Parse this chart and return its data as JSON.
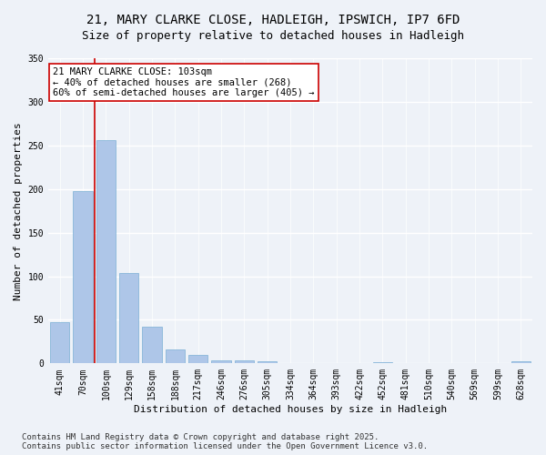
{
  "title_line1": "21, MARY CLARKE CLOSE, HADLEIGH, IPSWICH, IP7 6FD",
  "title_line2": "Size of property relative to detached houses in Hadleigh",
  "xlabel": "Distribution of detached houses by size in Hadleigh",
  "ylabel": "Number of detached properties",
  "categories": [
    "41sqm",
    "70sqm",
    "100sqm",
    "129sqm",
    "158sqm",
    "188sqm",
    "217sqm",
    "246sqm",
    "276sqm",
    "305sqm",
    "334sqm",
    "364sqm",
    "393sqm",
    "422sqm",
    "452sqm",
    "481sqm",
    "510sqm",
    "540sqm",
    "569sqm",
    "599sqm",
    "628sqm"
  ],
  "values": [
    47,
    198,
    256,
    104,
    42,
    16,
    10,
    4,
    4,
    2,
    0,
    0,
    0,
    0,
    1,
    0,
    0,
    0,
    0,
    0,
    2
  ],
  "bar_color": "#aec6e8",
  "bar_edge_color": "#7aafd4",
  "vline_x_index": 2,
  "vline_color": "#cc0000",
  "annotation_text": "21 MARY CLARKE CLOSE: 103sqm\n← 40% of detached houses are smaller (268)\n60% of semi-detached houses are larger (405) →",
  "annotation_box_color": "#ffffff",
  "annotation_box_edge_color": "#cc0000",
  "ylim": [
    0,
    350
  ],
  "yticks": [
    0,
    50,
    100,
    150,
    200,
    250,
    300,
    350
  ],
  "footer_line1": "Contains HM Land Registry data © Crown copyright and database right 2025.",
  "footer_line2": "Contains public sector information licensed under the Open Government Licence v3.0.",
  "background_color": "#eef2f8",
  "plot_bg_color": "#eef2f8",
  "grid_color": "#ffffff",
  "title_fontsize": 10,
  "subtitle_fontsize": 9,
  "axis_label_fontsize": 8,
  "tick_fontsize": 7,
  "annotation_fontsize": 7.5,
  "footer_fontsize": 6.5
}
